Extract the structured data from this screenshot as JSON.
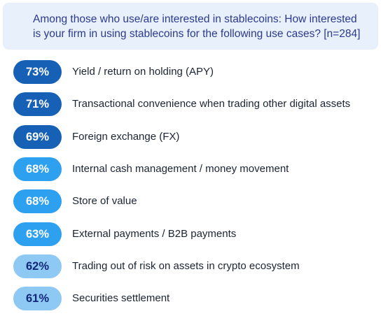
{
  "header": {
    "question_line1": "Among those who use/are interested in stablecoins: How interested",
    "question_line2": "is your firm in using stablecoins for the following use cases? [n=284]"
  },
  "colors": {
    "dark_blue": "#1660b5",
    "mid_blue": "#2ea0f0",
    "light_blue": "#8dc9f2",
    "header_bg": "#e8f0fb",
    "header_text": "#2b3a8c"
  },
  "chart_data": {
    "type": "table",
    "title": "Among those who use/are interested in stablecoins: How interested is your firm in using stablecoins for the following use cases? [n=284]",
    "unit": "%",
    "categories": [
      "Yield / return on holding (APY)",
      "Transactional convenience when trading other digital assets",
      "Foreign exchange (FX)",
      "Internal cash management / money movement",
      "Store of value",
      "External payments / B2B payments",
      "Trading out of risk on assets in crypto ecosystem",
      "Securities settlement"
    ],
    "values": [
      73,
      71,
      69,
      68,
      68,
      63,
      62,
      61
    ],
    "value_labels": [
      "73%",
      "71%",
      "69%",
      "68%",
      "68%",
      "63%",
      "62%",
      "61%"
    ],
    "pill_color_tiers": [
      "dark_blue",
      "dark_blue",
      "dark_blue",
      "mid_blue",
      "mid_blue",
      "mid_blue",
      "light_blue",
      "light_blue"
    ]
  }
}
